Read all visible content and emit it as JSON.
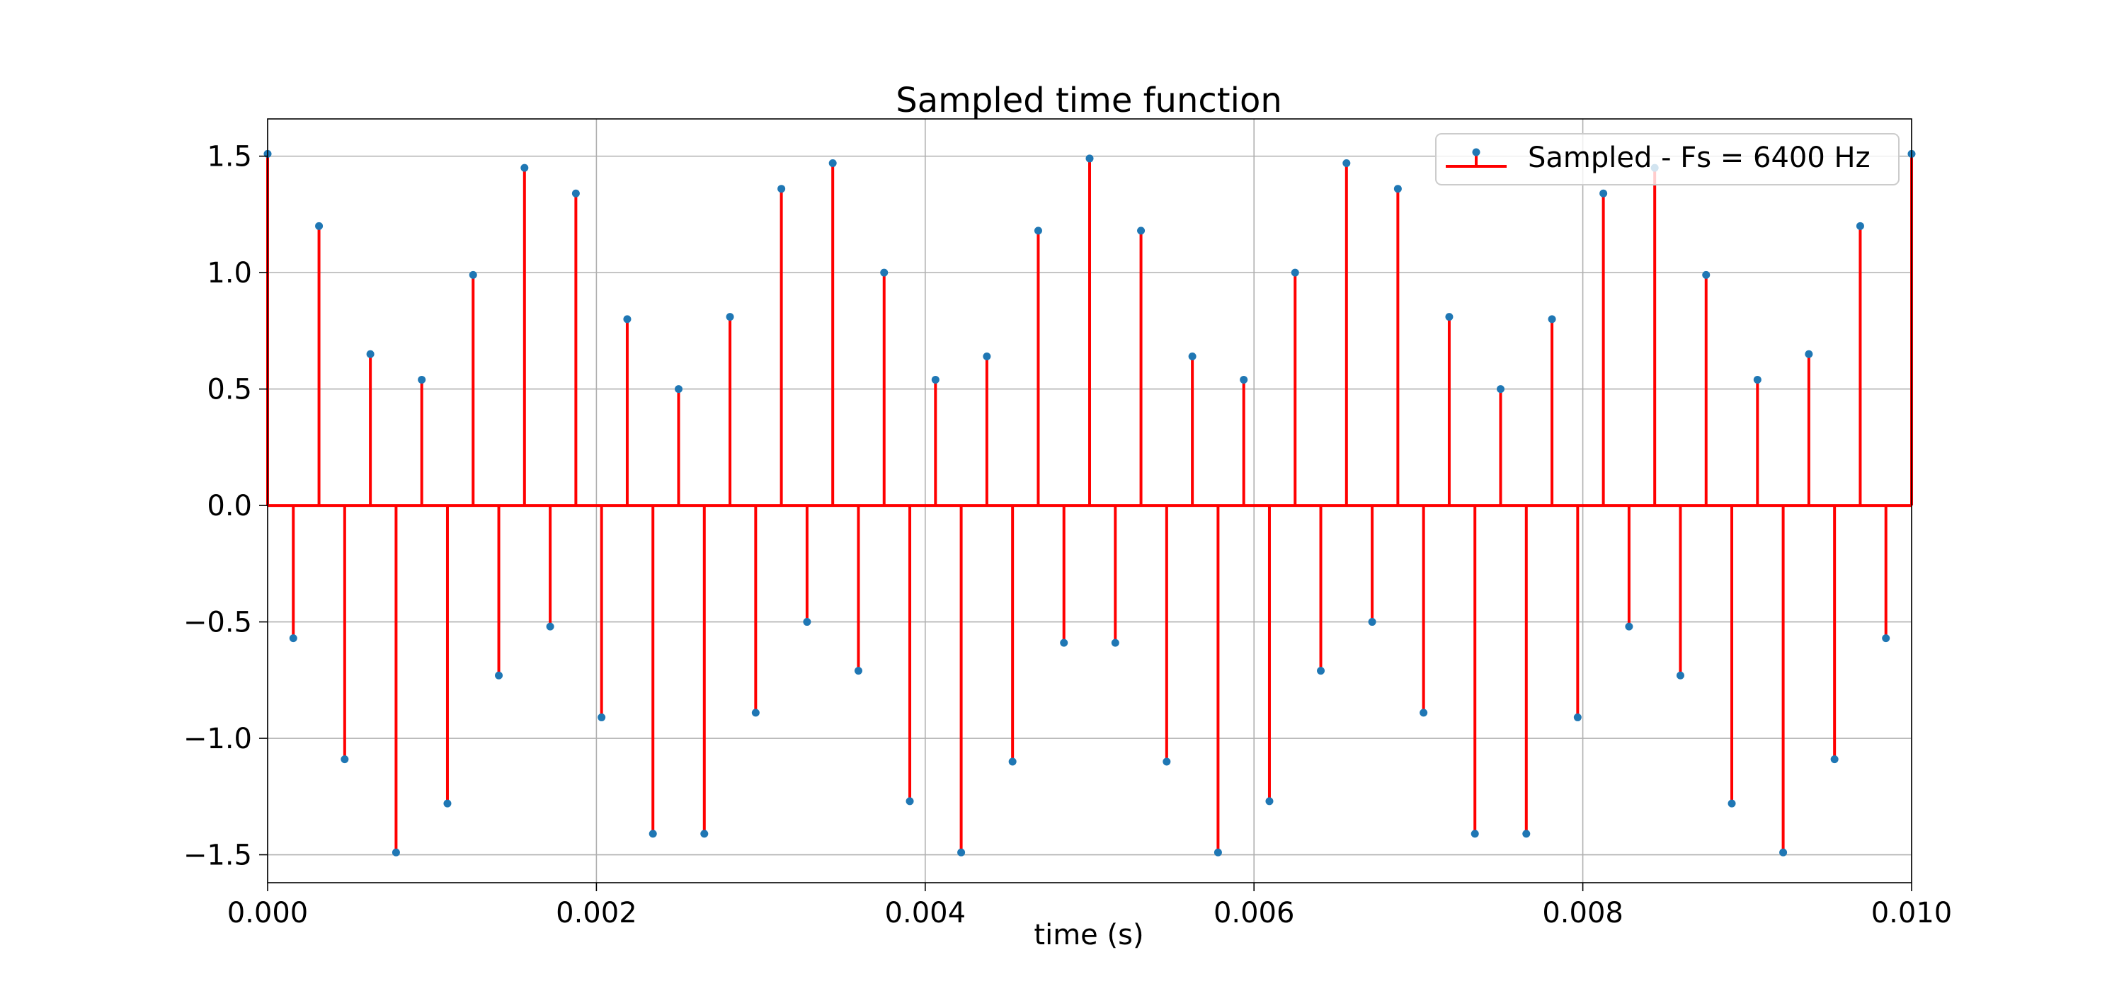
{
  "chart_data": {
    "type": "stem",
    "title": "Sampled time function",
    "xlabel": "time (s)",
    "ylabel": "",
    "xlim": [
      0.0,
      0.01
    ],
    "ylim": [
      -1.62,
      1.66
    ],
    "x_ticks": [
      0.0,
      0.002,
      0.004,
      0.006,
      0.008,
      0.01
    ],
    "x_tick_labels": [
      "0.000",
      "0.002",
      "0.004",
      "0.006",
      "0.008",
      "0.010"
    ],
    "y_ticks": [
      1.5,
      1.0,
      0.5,
      0.0,
      -0.5,
      -1.0,
      -1.5
    ],
    "y_tick_labels": [
      "1.5",
      "1.0",
      "0.5",
      "0.0",
      "−0.5",
      "−1.0",
      "−1.5"
    ],
    "grid": true,
    "legend_position": "top-right",
    "series": [
      {
        "name": "Sampled - Fs = 6400 Hz",
        "marker_color": "#1f77b4",
        "stem_color": "#ff0000",
        "baseline_color": "#ff0000",
        "x": [
          0.0,
          0.00015625,
          0.0003125,
          0.00046875,
          0.000625,
          0.00078125,
          0.0009375,
          0.00109375,
          0.00125,
          0.00140625,
          0.0015625,
          0.00171875,
          0.001875,
          0.00203125,
          0.0021875,
          0.00234375,
          0.0025,
          0.00265625,
          0.0028125,
          0.00296875,
          0.003125,
          0.00328125,
          0.0034375,
          0.00359375,
          0.00375,
          0.00390625,
          0.0040625,
          0.00421875,
          0.004375,
          0.00453125,
          0.0046875,
          0.00484375,
          0.005,
          0.00515625,
          0.0053125,
          0.00546875,
          0.005625,
          0.00578125,
          0.0059375,
          0.00609375,
          0.00625,
          0.00640625,
          0.0065625,
          0.00671875,
          0.006875,
          0.00703125,
          0.0071875,
          0.00734375,
          0.0075,
          0.00765625,
          0.0078125,
          0.00796875,
          0.008125,
          0.00828125,
          0.0084375,
          0.00859375,
          0.00875,
          0.00890625,
          0.0090625,
          0.00921875,
          0.009375,
          0.00953125,
          0.0096875,
          0.00984375,
          0.01
        ],
        "y": [
          1.51,
          -0.57,
          1.2,
          -1.09,
          0.65,
          -1.49,
          0.54,
          -1.28,
          0.99,
          -0.73,
          1.45,
          -0.52,
          1.34,
          -0.91,
          0.8,
          -1.41,
          0.5,
          -1.41,
          0.81,
          -0.89,
          1.36,
          -0.5,
          1.47,
          -0.71,
          1.0,
          -1.27,
          0.54,
          -1.49,
          0.64,
          -1.1,
          1.18,
          -0.59,
          1.49,
          -0.59,
          1.18,
          -1.1,
          0.64,
          -1.49,
          0.54,
          -1.27,
          1.0,
          -0.71,
          1.47,
          -0.5,
          1.36,
          -0.89,
          0.81,
          -1.41,
          0.5,
          -1.41,
          0.8,
          -0.91,
          1.34,
          -0.52,
          1.45,
          -0.73,
          0.99,
          -1.28,
          0.54,
          -1.49,
          0.65,
          -1.09,
          1.2,
          -0.57,
          1.51
        ]
      }
    ]
  }
}
